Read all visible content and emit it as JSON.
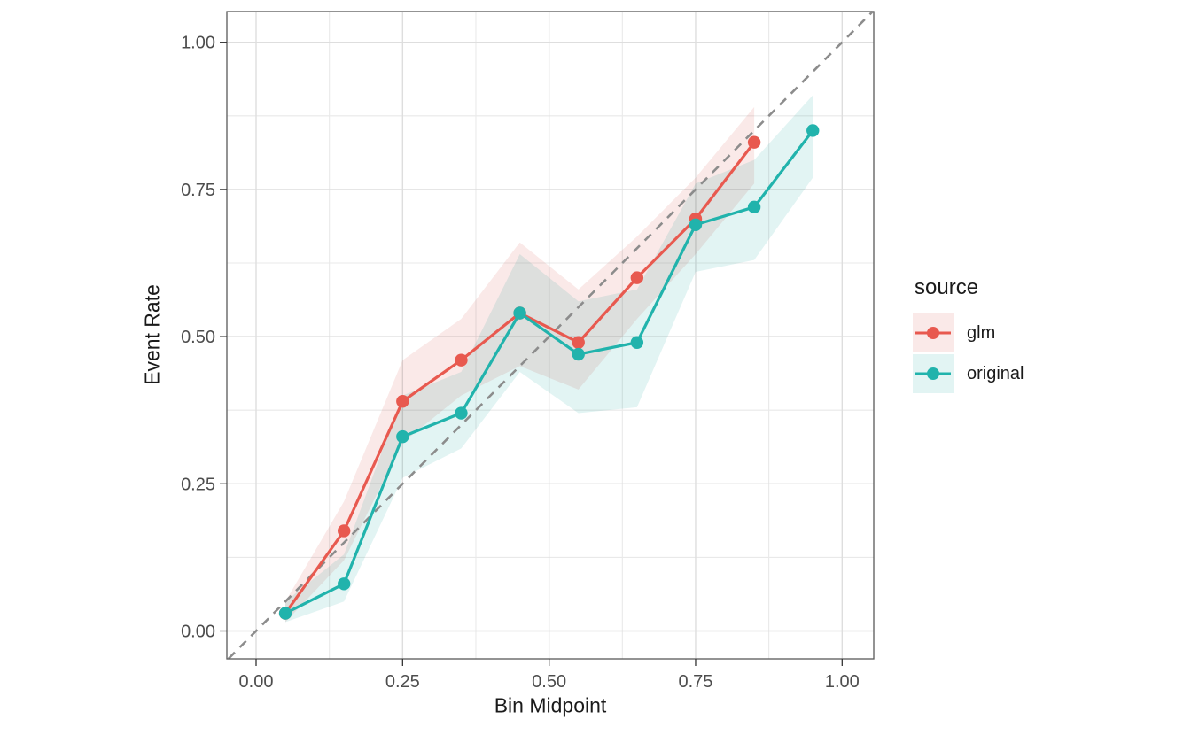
{
  "chart_data": {
    "type": "line",
    "title": "",
    "xlabel": "Bin Midpoint",
    "ylabel": "Event Rate",
    "xlim": [
      -0.05,
      1.054
    ],
    "ylim": [
      -0.047,
      1.052
    ],
    "grid": true,
    "x_ticks": {
      "values": [
        0,
        0.25,
        0.5,
        0.75,
        1
      ],
      "labels": [
        "0.00",
        "0.25",
        "0.50",
        "0.75",
        "1.00"
      ]
    },
    "y_ticks": {
      "values": [
        0,
        0.25,
        0.5,
        0.75,
        1
      ],
      "labels": [
        "0.00",
        "0.25",
        "0.50",
        "0.75",
        "1.00"
      ]
    },
    "minor_ticks_x": [
      0.125,
      0.375,
      0.625,
      0.875
    ],
    "minor_ticks_y": [
      0.125,
      0.375,
      0.625,
      0.875
    ],
    "reference_line": {
      "type": "identity",
      "style": "dashed",
      "color": "#8C8C8C"
    },
    "legend": {
      "title": "source",
      "position": "right",
      "entries": [
        "glm",
        "original"
      ]
    },
    "series": [
      {
        "name": "glm",
        "color": "#E8594F",
        "fill": "#FAE9E8",
        "x": [
          0.05,
          0.15,
          0.25,
          0.35,
          0.45,
          0.55,
          0.65,
          0.75,
          0.85
        ],
        "y": [
          0.03,
          0.17,
          0.39,
          0.46,
          0.54,
          0.49,
          0.6,
          0.7,
          0.83
        ],
        "ribbon_low": [
          0.015,
          0.12,
          0.32,
          0.4,
          0.45,
          0.41,
          0.53,
          0.64,
          0.76
        ],
        "ribbon_high": [
          0.05,
          0.22,
          0.46,
          0.53,
          0.66,
          0.58,
          0.67,
          0.77,
          0.89
        ]
      },
      {
        "name": "original",
        "color": "#21B3AC",
        "fill": "#E2F4F3",
        "x": [
          0.05,
          0.15,
          0.25,
          0.35,
          0.45,
          0.55,
          0.65,
          0.75,
          0.85,
          0.95
        ],
        "y": [
          0.03,
          0.08,
          0.33,
          0.37,
          0.54,
          0.47,
          0.49,
          0.69,
          0.72,
          0.85
        ],
        "ribbon_low": [
          0.015,
          0.05,
          0.26,
          0.31,
          0.44,
          0.37,
          0.38,
          0.61,
          0.63,
          0.77
        ],
        "ribbon_high": [
          0.05,
          0.13,
          0.4,
          0.44,
          0.64,
          0.56,
          0.58,
          0.76,
          0.8,
          0.91
        ]
      }
    ],
    "panel": {
      "background": "#ffffff",
      "border_color": "#595959",
      "grid_major_color": "#DEDEDE",
      "grid_minor_color": "#E9E9E9",
      "tick_color": "#333333",
      "tick_label_color": "#4D4D4D"
    }
  }
}
